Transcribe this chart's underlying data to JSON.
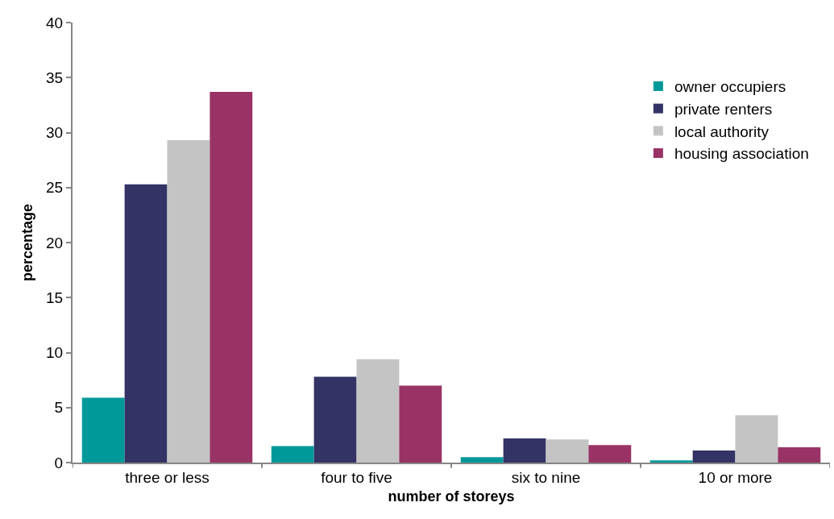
{
  "chart_data": {
    "type": "bar",
    "xlabel": "number of storeys",
    "ylabel": "percentage",
    "categories": [
      "three or less",
      "four to five",
      "six to nine",
      "10 or more"
    ],
    "series": [
      {
        "name": "owner occupiers",
        "color": "#009999",
        "values": [
          5.9,
          1.5,
          0.5,
          0.2
        ]
      },
      {
        "name": "private renters",
        "color": "#333366",
        "values": [
          25.3,
          7.8,
          2.2,
          1.1
        ]
      },
      {
        "name": "local authority",
        "color": "#c4c4c4",
        "values": [
          29.3,
          9.4,
          2.1,
          4.3
        ]
      },
      {
        "name": "housing association",
        "color": "#993366",
        "values": [
          33.7,
          7.0,
          1.6,
          1.4
        ]
      }
    ],
    "ylim": [
      0,
      40
    ],
    "yticks": [
      0,
      5,
      10,
      15,
      20,
      25,
      30,
      35,
      40
    ],
    "legend": "top right"
  }
}
